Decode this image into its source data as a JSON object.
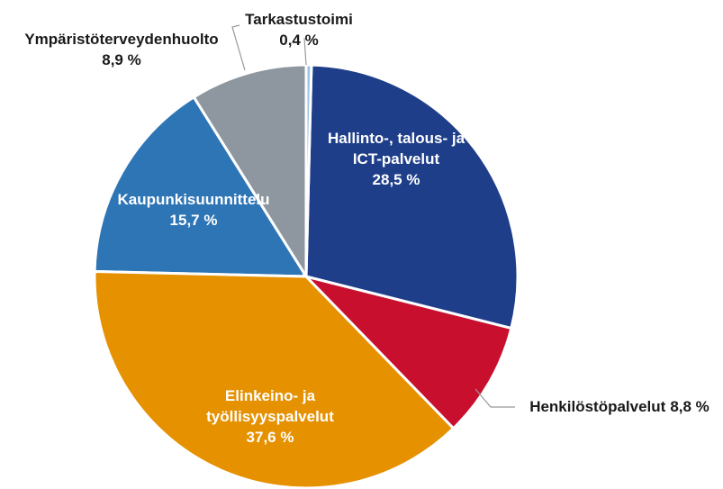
{
  "chart_data": {
    "type": "pie",
    "categories": [
      "Tarkastustoimi",
      "Hallinto-, talous- ja ICT-palvelut",
      "Henkilöstöpalvelut",
      "Elinkeino- ja työllisyyspalvelut",
      "Kaupunkisuunnittelu",
      "Ympäristöterveydenhuolto"
    ],
    "values": [
      0.4,
      28.5,
      8.8,
      37.6,
      15.7,
      8.9
    ],
    "value_labels": [
      "0,4 %",
      "28,5 %",
      "8,8 %",
      "37,6 %",
      "15,7 %",
      "8,9 %"
    ],
    "colors": [
      "#9dc3e6",
      "#1f3e8a",
      "#c8102e",
      "#e69100",
      "#2e75b6",
      "#8e979f"
    ]
  }
}
